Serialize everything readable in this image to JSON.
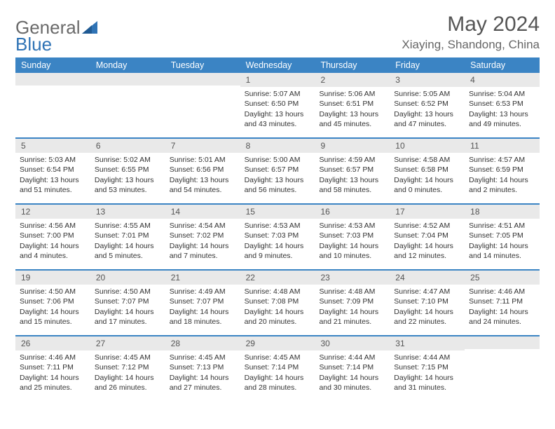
{
  "logo": {
    "text_a": "General",
    "text_b": "Blue",
    "accent_color": "#2f73b5"
  },
  "title": "May 2024",
  "location": "Xiaying, Shandong, China",
  "header_bg": "#3b84c4",
  "band_bg": "#e9e9e9",
  "text_color": "#333333",
  "title_color": "#555555",
  "days_of_week": [
    "Sunday",
    "Monday",
    "Tuesday",
    "Wednesday",
    "Thursday",
    "Friday",
    "Saturday"
  ],
  "weeks": [
    [
      {
        "n": "",
        "sunrise": "",
        "sunset": "",
        "daylight": ""
      },
      {
        "n": "",
        "sunrise": "",
        "sunset": "",
        "daylight": ""
      },
      {
        "n": "",
        "sunrise": "",
        "sunset": "",
        "daylight": ""
      },
      {
        "n": "1",
        "sunrise": "Sunrise: 5:07 AM",
        "sunset": "Sunset: 6:50 PM",
        "daylight": "Daylight: 13 hours and 43 minutes."
      },
      {
        "n": "2",
        "sunrise": "Sunrise: 5:06 AM",
        "sunset": "Sunset: 6:51 PM",
        "daylight": "Daylight: 13 hours and 45 minutes."
      },
      {
        "n": "3",
        "sunrise": "Sunrise: 5:05 AM",
        "sunset": "Sunset: 6:52 PM",
        "daylight": "Daylight: 13 hours and 47 minutes."
      },
      {
        "n": "4",
        "sunrise": "Sunrise: 5:04 AM",
        "sunset": "Sunset: 6:53 PM",
        "daylight": "Daylight: 13 hours and 49 minutes."
      }
    ],
    [
      {
        "n": "5",
        "sunrise": "Sunrise: 5:03 AM",
        "sunset": "Sunset: 6:54 PM",
        "daylight": "Daylight: 13 hours and 51 minutes."
      },
      {
        "n": "6",
        "sunrise": "Sunrise: 5:02 AM",
        "sunset": "Sunset: 6:55 PM",
        "daylight": "Daylight: 13 hours and 53 minutes."
      },
      {
        "n": "7",
        "sunrise": "Sunrise: 5:01 AM",
        "sunset": "Sunset: 6:56 PM",
        "daylight": "Daylight: 13 hours and 54 minutes."
      },
      {
        "n": "8",
        "sunrise": "Sunrise: 5:00 AM",
        "sunset": "Sunset: 6:57 PM",
        "daylight": "Daylight: 13 hours and 56 minutes."
      },
      {
        "n": "9",
        "sunrise": "Sunrise: 4:59 AM",
        "sunset": "Sunset: 6:57 PM",
        "daylight": "Daylight: 13 hours and 58 minutes."
      },
      {
        "n": "10",
        "sunrise": "Sunrise: 4:58 AM",
        "sunset": "Sunset: 6:58 PM",
        "daylight": "Daylight: 14 hours and 0 minutes."
      },
      {
        "n": "11",
        "sunrise": "Sunrise: 4:57 AM",
        "sunset": "Sunset: 6:59 PM",
        "daylight": "Daylight: 14 hours and 2 minutes."
      }
    ],
    [
      {
        "n": "12",
        "sunrise": "Sunrise: 4:56 AM",
        "sunset": "Sunset: 7:00 PM",
        "daylight": "Daylight: 14 hours and 4 minutes."
      },
      {
        "n": "13",
        "sunrise": "Sunrise: 4:55 AM",
        "sunset": "Sunset: 7:01 PM",
        "daylight": "Daylight: 14 hours and 5 minutes."
      },
      {
        "n": "14",
        "sunrise": "Sunrise: 4:54 AM",
        "sunset": "Sunset: 7:02 PM",
        "daylight": "Daylight: 14 hours and 7 minutes."
      },
      {
        "n": "15",
        "sunrise": "Sunrise: 4:53 AM",
        "sunset": "Sunset: 7:03 PM",
        "daylight": "Daylight: 14 hours and 9 minutes."
      },
      {
        "n": "16",
        "sunrise": "Sunrise: 4:53 AM",
        "sunset": "Sunset: 7:03 PM",
        "daylight": "Daylight: 14 hours and 10 minutes."
      },
      {
        "n": "17",
        "sunrise": "Sunrise: 4:52 AM",
        "sunset": "Sunset: 7:04 PM",
        "daylight": "Daylight: 14 hours and 12 minutes."
      },
      {
        "n": "18",
        "sunrise": "Sunrise: 4:51 AM",
        "sunset": "Sunset: 7:05 PM",
        "daylight": "Daylight: 14 hours and 14 minutes."
      }
    ],
    [
      {
        "n": "19",
        "sunrise": "Sunrise: 4:50 AM",
        "sunset": "Sunset: 7:06 PM",
        "daylight": "Daylight: 14 hours and 15 minutes."
      },
      {
        "n": "20",
        "sunrise": "Sunrise: 4:50 AM",
        "sunset": "Sunset: 7:07 PM",
        "daylight": "Daylight: 14 hours and 17 minutes."
      },
      {
        "n": "21",
        "sunrise": "Sunrise: 4:49 AM",
        "sunset": "Sunset: 7:07 PM",
        "daylight": "Daylight: 14 hours and 18 minutes."
      },
      {
        "n": "22",
        "sunrise": "Sunrise: 4:48 AM",
        "sunset": "Sunset: 7:08 PM",
        "daylight": "Daylight: 14 hours and 20 minutes."
      },
      {
        "n": "23",
        "sunrise": "Sunrise: 4:48 AM",
        "sunset": "Sunset: 7:09 PM",
        "daylight": "Daylight: 14 hours and 21 minutes."
      },
      {
        "n": "24",
        "sunrise": "Sunrise: 4:47 AM",
        "sunset": "Sunset: 7:10 PM",
        "daylight": "Daylight: 14 hours and 22 minutes."
      },
      {
        "n": "25",
        "sunrise": "Sunrise: 4:46 AM",
        "sunset": "Sunset: 7:11 PM",
        "daylight": "Daylight: 14 hours and 24 minutes."
      }
    ],
    [
      {
        "n": "26",
        "sunrise": "Sunrise: 4:46 AM",
        "sunset": "Sunset: 7:11 PM",
        "daylight": "Daylight: 14 hours and 25 minutes."
      },
      {
        "n": "27",
        "sunrise": "Sunrise: 4:45 AM",
        "sunset": "Sunset: 7:12 PM",
        "daylight": "Daylight: 14 hours and 26 minutes."
      },
      {
        "n": "28",
        "sunrise": "Sunrise: 4:45 AM",
        "sunset": "Sunset: 7:13 PM",
        "daylight": "Daylight: 14 hours and 27 minutes."
      },
      {
        "n": "29",
        "sunrise": "Sunrise: 4:45 AM",
        "sunset": "Sunset: 7:14 PM",
        "daylight": "Daylight: 14 hours and 28 minutes."
      },
      {
        "n": "30",
        "sunrise": "Sunrise: 4:44 AM",
        "sunset": "Sunset: 7:14 PM",
        "daylight": "Daylight: 14 hours and 30 minutes."
      },
      {
        "n": "31",
        "sunrise": "Sunrise: 4:44 AM",
        "sunset": "Sunset: 7:15 PM",
        "daylight": "Daylight: 14 hours and 31 minutes."
      },
      {
        "n": "",
        "sunrise": "",
        "sunset": "",
        "daylight": ""
      }
    ]
  ]
}
